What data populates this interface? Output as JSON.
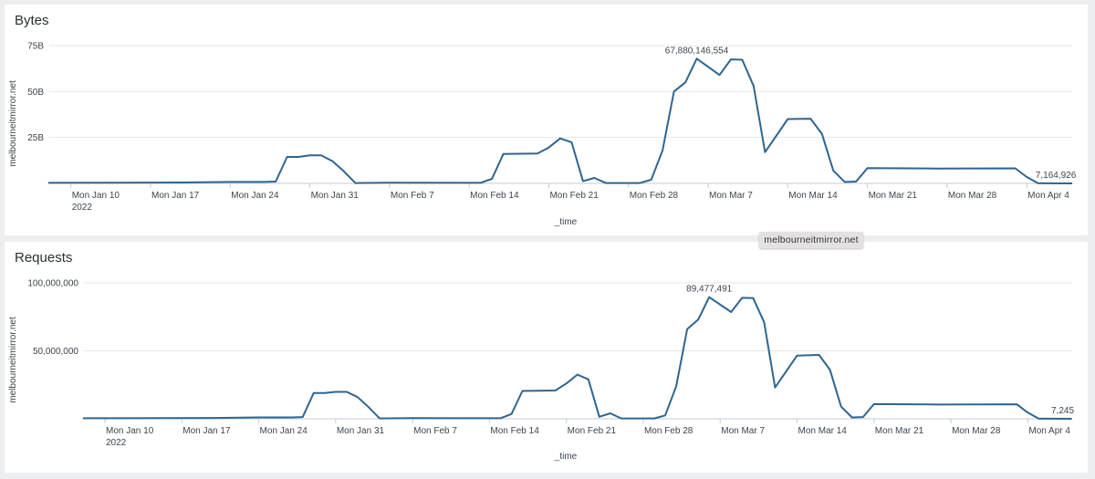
{
  "colors": {
    "line": "#2e6591",
    "grid": "#e4e6e8",
    "axis": "#c3cbd4"
  },
  "tooltip": "melbourneitmirror.net",
  "chart_data": [
    {
      "type": "line",
      "title": "Bytes",
      "xlabel": "_time",
      "ylabel": "melbourneitmirror.net",
      "ylim": [
        0,
        75000000000
      ],
      "yticks": [
        {
          "v": 25000000000,
          "label": "25B"
        },
        {
          "v": 50000000000,
          "label": "50B"
        },
        {
          "v": 75000000000,
          "label": "75B"
        }
      ],
      "xticks": [
        {
          "date": "2022-01-10",
          "label": "Mon Jan 10",
          "sub": "2022"
        },
        {
          "date": "2022-01-17",
          "label": "Mon Jan 17"
        },
        {
          "date": "2022-01-24",
          "label": "Mon Jan 24"
        },
        {
          "date": "2022-01-31",
          "label": "Mon Jan 31"
        },
        {
          "date": "2022-02-07",
          "label": "Mon Feb 7"
        },
        {
          "date": "2022-02-14",
          "label": "Mon Feb 14"
        },
        {
          "date": "2022-02-21",
          "label": "Mon Feb 21"
        },
        {
          "date": "2022-02-28",
          "label": "Mon Feb 28"
        },
        {
          "date": "2022-03-07",
          "label": "Mon Mar 7"
        },
        {
          "date": "2022-03-14",
          "label": "Mon Mar 14"
        },
        {
          "date": "2022-03-21",
          "label": "Mon Mar 21"
        },
        {
          "date": "2022-03-28",
          "label": "Mon Mar 28"
        },
        {
          "date": "2022-04-04",
          "label": "Mon Apr 4"
        }
      ],
      "grid": true,
      "legend": "none",
      "series": [
        {
          "name": "melbourneitmirror.net",
          "points": [
            [
              "2022-01-08",
              300000000
            ],
            [
              "2022-01-20",
              500000000
            ],
            [
              "2022-01-24",
              800000000
            ],
            [
              "2022-01-27",
              800000000
            ],
            [
              "2022-01-28",
              1000000000
            ],
            [
              "2022-01-29",
              14400000000
            ],
            [
              "2022-01-30",
              14400000000
            ],
            [
              "2022-01-31",
              15300000000
            ],
            [
              "2022-02-01",
              15300000000
            ],
            [
              "2022-02-02",
              12000000000
            ],
            [
              "2022-02-03",
              6500000000
            ],
            [
              "2022-02-04",
              200000000
            ],
            [
              "2022-02-07",
              400000000
            ],
            [
              "2022-02-15",
              300000000
            ],
            [
              "2022-02-16",
              2500000000
            ],
            [
              "2022-02-17",
              16000000000
            ],
            [
              "2022-02-20",
              16300000000
            ],
            [
              "2022-02-21",
              19500000000
            ],
            [
              "2022-02-22",
              24500000000
            ],
            [
              "2022-02-23",
              22400000000
            ],
            [
              "2022-02-24",
              1200000000
            ],
            [
              "2022-02-25",
              3000000000
            ],
            [
              "2022-02-26",
              200000000
            ],
            [
              "2022-03-01",
              200000000
            ],
            [
              "2022-03-02",
              2000000000
            ],
            [
              "2022-03-03",
              18000000000
            ],
            [
              "2022-03-04",
              50000000000
            ],
            [
              "2022-03-05",
              55000000000
            ],
            [
              "2022-03-06",
              67880146554
            ],
            [
              "2022-03-08",
              59000000000
            ],
            [
              "2022-03-09",
              67500000000
            ],
            [
              "2022-03-10",
              67300000000
            ],
            [
              "2022-03-11",
              53000000000
            ],
            [
              "2022-03-12",
              17000000000
            ],
            [
              "2022-03-14",
              35000000000
            ],
            [
              "2022-03-16",
              35200000000
            ],
            [
              "2022-03-17",
              27000000000
            ],
            [
              "2022-03-18",
              7000000000
            ],
            [
              "2022-03-19",
              800000000
            ],
            [
              "2022-03-20",
              1000000000
            ],
            [
              "2022-03-21",
              8300000000
            ],
            [
              "2022-03-27",
              8100000000
            ],
            [
              "2022-04-03",
              8200000000
            ],
            [
              "2022-04-04",
              3500000000
            ],
            [
              "2022-04-05",
              50000000
            ],
            [
              "2022-04-08",
              7164926
            ]
          ]
        }
      ],
      "annotations": [
        {
          "date": "2022-03-06",
          "value": 67880146554,
          "label": "67,880,146,554"
        },
        {
          "date": "2022-04-08",
          "value": 7164926,
          "label": "7,164,926"
        }
      ]
    },
    {
      "type": "line",
      "title": "Requests",
      "xlabel": "_time",
      "ylabel": "melbourneitmirror.net",
      "ylim": [
        0,
        100000000
      ],
      "yticks": [
        {
          "v": 50000000,
          "label": "50,000,000"
        },
        {
          "v": 100000000,
          "label": "100,000,000"
        }
      ],
      "xticks": [
        {
          "date": "2022-01-10",
          "label": "Mon Jan 10",
          "sub": "2022"
        },
        {
          "date": "2022-01-17",
          "label": "Mon Jan 17"
        },
        {
          "date": "2022-01-24",
          "label": "Mon Jan 24"
        },
        {
          "date": "2022-01-31",
          "label": "Mon Jan 31"
        },
        {
          "date": "2022-02-07",
          "label": "Mon Feb 7"
        },
        {
          "date": "2022-02-14",
          "label": "Mon Feb 14"
        },
        {
          "date": "2022-02-21",
          "label": "Mon Feb 21"
        },
        {
          "date": "2022-02-28",
          "label": "Mon Feb 28"
        },
        {
          "date": "2022-03-07",
          "label": "Mon Mar 7"
        },
        {
          "date": "2022-03-14",
          "label": "Mon Mar 14"
        },
        {
          "date": "2022-03-21",
          "label": "Mon Mar 21"
        },
        {
          "date": "2022-03-28",
          "label": "Mon Mar 28"
        },
        {
          "date": "2022-04-04",
          "label": "Mon Apr 4"
        }
      ],
      "grid": true,
      "legend": "none",
      "series": [
        {
          "name": "melbourneitmirror.net",
          "points": [
            [
              "2022-01-08",
              400000
            ],
            [
              "2022-01-20",
              600000
            ],
            [
              "2022-01-24",
              1000000
            ],
            [
              "2022-01-27",
              1000000
            ],
            [
              "2022-01-28",
              1300000
            ],
            [
              "2022-01-29",
              19000000
            ],
            [
              "2022-01-30",
              19000000
            ],
            [
              "2022-01-31",
              19800000
            ],
            [
              "2022-02-01",
              19800000
            ],
            [
              "2022-02-02",
              16000000
            ],
            [
              "2022-02-03",
              8500000
            ],
            [
              "2022-02-04",
              300000
            ],
            [
              "2022-02-07",
              500000
            ],
            [
              "2022-02-15",
              400000
            ],
            [
              "2022-02-16",
              3500000
            ],
            [
              "2022-02-17",
              20500000
            ],
            [
              "2022-02-20",
              20800000
            ],
            [
              "2022-02-21",
              26000000
            ],
            [
              "2022-02-22",
              32500000
            ],
            [
              "2022-02-23",
              29000000
            ],
            [
              "2022-02-24",
              1500000
            ],
            [
              "2022-02-25",
              4000000
            ],
            [
              "2022-02-26",
              300000
            ],
            [
              "2022-03-01",
              300000
            ],
            [
              "2022-03-02",
              2500000
            ],
            [
              "2022-03-03",
              24000000
            ],
            [
              "2022-03-04",
              66000000
            ],
            [
              "2022-03-05",
              73000000
            ],
            [
              "2022-03-06",
              89477491
            ],
            [
              "2022-03-08",
              78500000
            ],
            [
              "2022-03-09",
              89000000
            ],
            [
              "2022-03-10",
              88700000
            ],
            [
              "2022-03-11",
              71000000
            ],
            [
              "2022-03-12",
              23000000
            ],
            [
              "2022-03-14",
              46500000
            ],
            [
              "2022-03-16",
              47000000
            ],
            [
              "2022-03-17",
              36000000
            ],
            [
              "2022-03-18",
              9000000
            ],
            [
              "2022-03-19",
              1000000
            ],
            [
              "2022-03-20",
              1300000
            ],
            [
              "2022-03-21",
              10800000
            ],
            [
              "2022-03-27",
              10500000
            ],
            [
              "2022-04-03",
              10700000
            ],
            [
              "2022-04-04",
              4500000
            ],
            [
              "2022-04-05",
              50000
            ],
            [
              "2022-04-08",
              7245
            ]
          ]
        }
      ],
      "annotations": [
        {
          "date": "2022-03-06",
          "value": 89477491,
          "label": "89,477,491"
        },
        {
          "date": "2022-04-08",
          "value": 7245,
          "label": "7,245"
        }
      ]
    }
  ]
}
